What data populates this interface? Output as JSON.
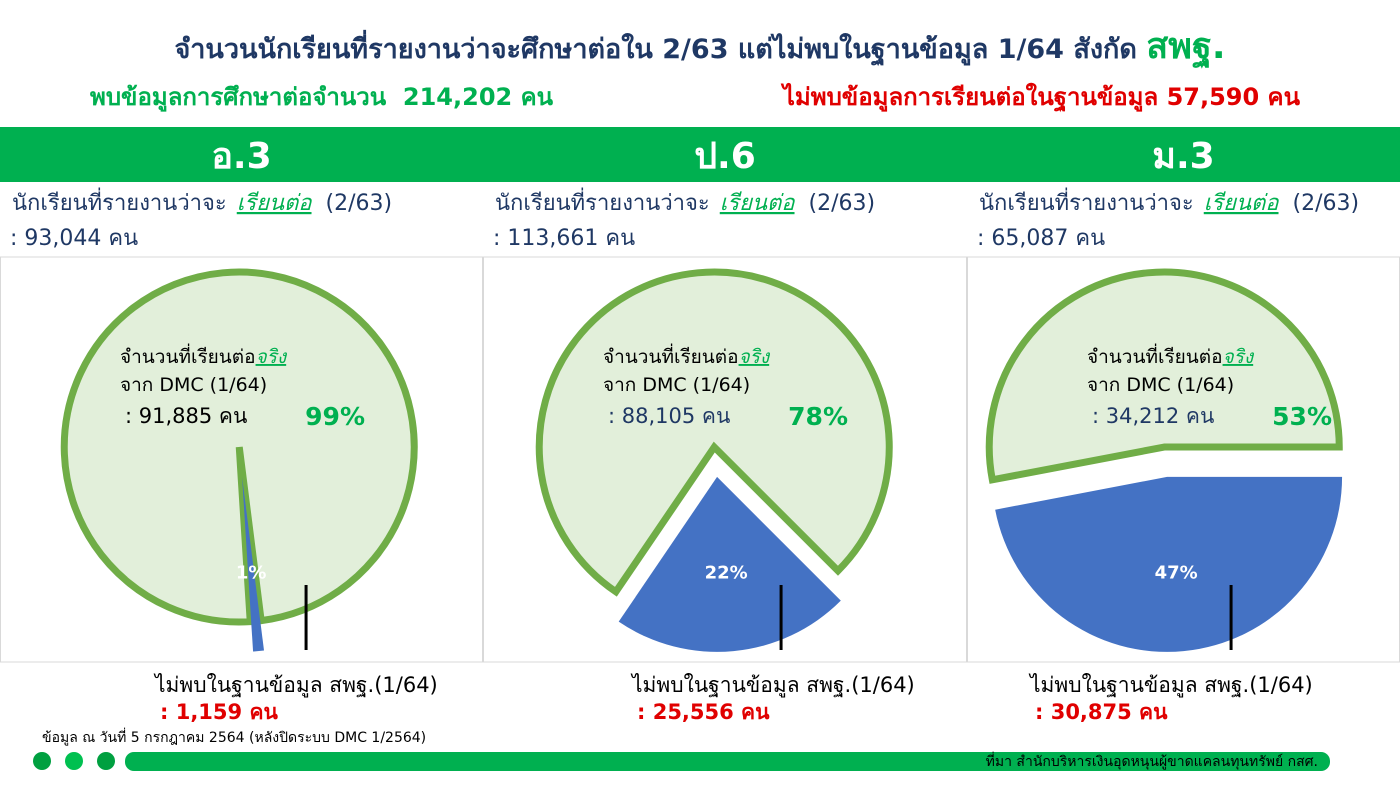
{
  "title": "จำนวนนักเรียนที่รายงานว่าจะศึกษาต่อใน 2/63 แต่ไม่พบในฐานข้อมูล 1/64 สังกัด",
  "title_emph": "สพฐ.",
  "found_summary": "พบข้อมูลการศึกษาต่อจำนวน  214,202 คน",
  "missing_summary": "ไม่พบข้อมูลการเรียนต่อในฐานข้อมูล 57,590 คน",
  "footnote": "ข้อมูล ณ วันที่ 5 กรกฎาคม 2564 (หลังปิดระบบ DMC 1/2564)",
  "source": "ที่มา สำนักบริหารเงินอุดหนุนผู้ขาดแคลนทุนทรัพย์ กสศ.",
  "chart_data": [
    {
      "type": "pie",
      "title": "อ.3",
      "reported_text": "นักเรียนที่รายงานว่าจะ",
      "reported_emph": "เรียนต่อ",
      "reported_term": "(2/63)",
      "reported_count": ": 93,044 คน",
      "found_text": "จำนวนที่เรียนต่อ",
      "found_emph": "จริง",
      "found_source": "จาก DMC (1/64)",
      "found_count": ": 91,885 คน",
      "missing_text": "ไม่พบในฐานข้อมูล สพฐ.(1/64)",
      "missing_count": ": 1,159 คน",
      "values": [
        99,
        1
      ],
      "value_labels": [
        "99%",
        "1%"
      ],
      "colors": [
        "#e2efda",
        "#4472c4"
      ]
    },
    {
      "type": "pie",
      "title": "ป.6",
      "reported_text": "นักเรียนที่รายงานว่าจะ",
      "reported_emph": "เรียนต่อ",
      "reported_term": "(2/63)",
      "reported_count": ": 113,661 คน",
      "found_text": "จำนวนที่เรียนต่อ",
      "found_emph": "จริง",
      "found_source": "จาก DMC (1/64)",
      "found_count": ": 88,105 คน",
      "missing_text": "ไม่พบในฐานข้อมูล สพฐ.(1/64)",
      "missing_count": ": 25,556 คน",
      "values": [
        78,
        22
      ],
      "value_labels": [
        "78%",
        "22%"
      ],
      "colors": [
        "#e2efda",
        "#4472c4"
      ]
    },
    {
      "type": "pie",
      "title": "ม.3",
      "reported_text": "นักเรียนที่รายงานว่าจะ",
      "reported_emph": "เรียนต่อ",
      "reported_term": "(2/63)",
      "reported_count": ": 65,087 คน",
      "found_text": "จำนวนที่เรียนต่อ",
      "found_emph": "จริง",
      "found_source": "จาก DMC (1/64)",
      "found_count": ": 34,212 คน",
      "missing_text": "ไม่พบในฐานข้อมูล สพฐ.(1/64)",
      "missing_count": ": 30,875 คน",
      "values": [
        53,
        47
      ],
      "value_labels": [
        "53%",
        "47%"
      ],
      "colors": [
        "#e2efda",
        "#4472c4"
      ]
    }
  ]
}
